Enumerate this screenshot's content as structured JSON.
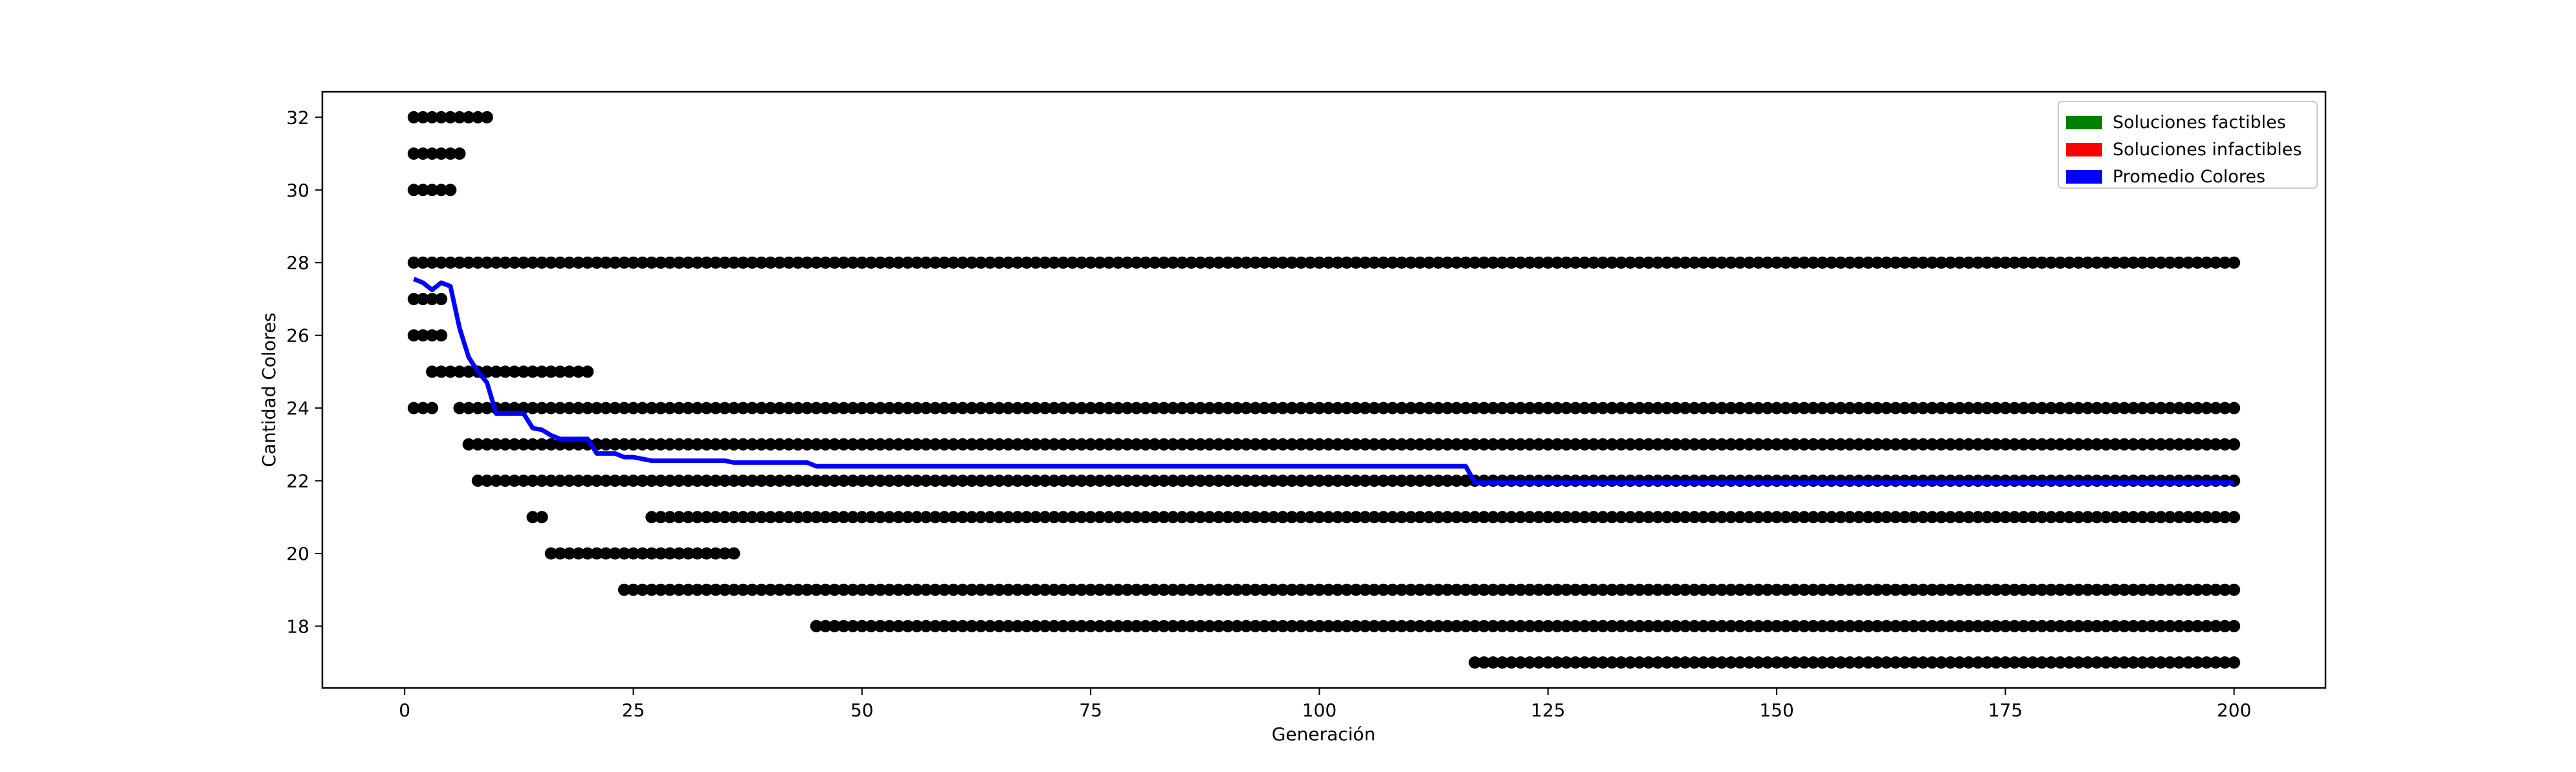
{
  "chart_data": {
    "type": "scatter",
    "title": "",
    "xlabel": "Generación",
    "ylabel": "Cantidad Colores",
    "xlim": [
      -9,
      210
    ],
    "ylim": [
      16.3,
      32.7
    ],
    "xticks": [
      0,
      25,
      50,
      75,
      100,
      125,
      150,
      175,
      200
    ],
    "yticks": [
      18,
      20,
      22,
      24,
      26,
      28,
      30,
      32
    ],
    "grid": false,
    "legend": {
      "placement": "top-right",
      "entries": [
        {
          "label": "Soluciones factibles",
          "color": "#008000"
        },
        {
          "label": "Soluciones infactibles",
          "color": "#ff0000"
        },
        {
          "label": "Promedio Colores",
          "color": "#0000ff"
        }
      ]
    },
    "points_color": "#000000",
    "point_runs": [
      {
        "y": 32,
        "from": 1,
        "to": 9
      },
      {
        "y": 31,
        "from": 1,
        "to": 6
      },
      {
        "y": 30,
        "from": 1,
        "to": 5
      },
      {
        "y": 28,
        "from": 1,
        "to": 200
      },
      {
        "y": 27,
        "from": 1,
        "to": 4
      },
      {
        "y": 26,
        "from": 1,
        "to": 4
      },
      {
        "y": 25,
        "from": 3,
        "to": 20
      },
      {
        "y": 24,
        "from": 1,
        "to": 3
      },
      {
        "y": 24,
        "from": 6,
        "to": 200
      },
      {
        "y": 23,
        "from": 7,
        "to": 200
      },
      {
        "y": 22,
        "from": 8,
        "to": 200
      },
      {
        "y": 21,
        "from": 14,
        "to": 15
      },
      {
        "y": 21,
        "from": 27,
        "to": 200
      },
      {
        "y": 20,
        "from": 16,
        "to": 36
      },
      {
        "y": 19,
        "from": 24,
        "to": 200
      },
      {
        "y": 18,
        "from": 45,
        "to": 200
      },
      {
        "y": 17,
        "from": 117,
        "to": 200
      }
    ],
    "series": [
      {
        "name": "Promedio Colores",
        "color": "#0000ff",
        "x": [
          1,
          2,
          3,
          4,
          5,
          6,
          7,
          8,
          9,
          10,
          11,
          12,
          13,
          14,
          15,
          16,
          17,
          18,
          19,
          20,
          21,
          22,
          23,
          24,
          25,
          26,
          27,
          30,
          35,
          36,
          40,
          44,
          45,
          60,
          100,
          116,
          117,
          150,
          200
        ],
        "y": [
          27.55,
          27.45,
          27.25,
          27.45,
          27.35,
          26.2,
          25.4,
          25.0,
          24.7,
          23.85,
          23.85,
          23.85,
          23.85,
          23.45,
          23.4,
          23.25,
          23.15,
          23.15,
          23.15,
          23.15,
          22.75,
          22.75,
          22.75,
          22.65,
          22.65,
          22.6,
          22.55,
          22.55,
          22.55,
          22.5,
          22.5,
          22.5,
          22.4,
          22.4,
          22.4,
          22.4,
          21.95,
          21.95,
          21.95
        ]
      }
    ]
  }
}
